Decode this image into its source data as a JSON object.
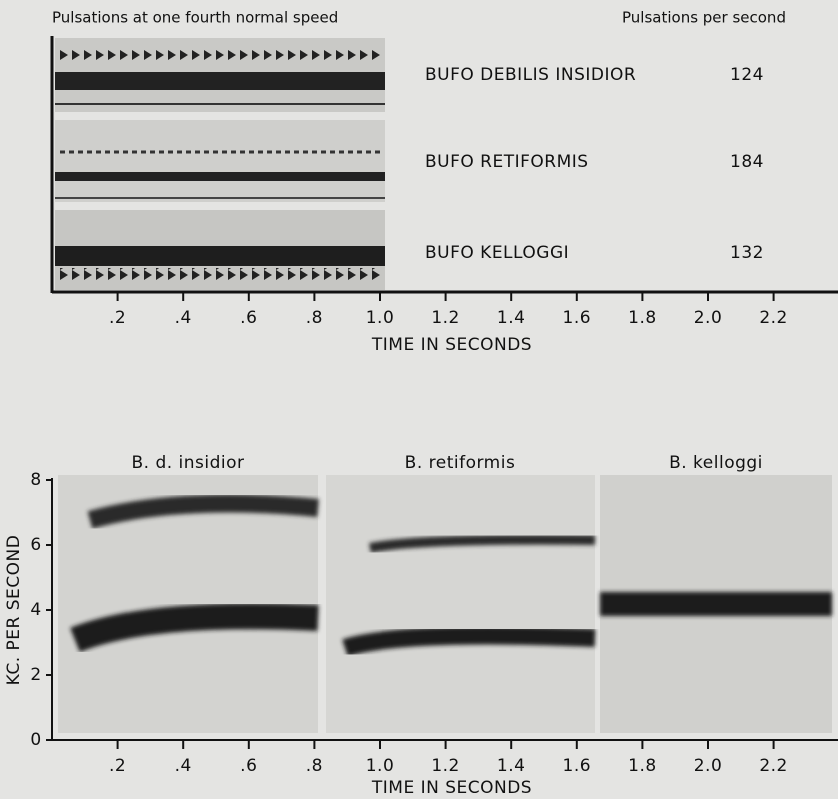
{
  "top": {
    "title": "Pulsations at one fourth normal speed",
    "rate_header": "Pulsations per second",
    "rows": [
      {
        "name": "BUFO DEBILIS INSIDIOR",
        "rate": 124
      },
      {
        "name": "BUFO RETIFORMIS",
        "rate": 184
      },
      {
        "name": "BUFO KELLOGGI",
        "rate": 132
      }
    ],
    "xlabel": "TIME IN SECONDS",
    "xticks": [
      {
        "value": 0.2,
        "label": ".2"
      },
      {
        "value": 0.4,
        "label": ".4"
      },
      {
        "value": 0.6,
        "label": ".6"
      },
      {
        "value": 0.8,
        "label": ".8"
      },
      {
        "value": 1,
        "label": "1.0"
      },
      1.2,
      1.4,
      1.6,
      1.8,
      {
        "value": 2,
        "label": "2.0"
      },
      2.2
    ]
  },
  "bottom": {
    "panels": [
      "B. d. insidior",
      "B. retiformis",
      "B. kelloggi"
    ],
    "ylabel": "KC. PER SECOND",
    "yticks": [
      0,
      2,
      4,
      6,
      8
    ],
    "xlabel": "TIME IN SECONDS",
    "xticks": [
      {
        "value": 0.2,
        "label": ".2"
      },
      {
        "value": 0.4,
        "label": ".4"
      },
      {
        "value": 0.6,
        "label": ".6"
      },
      {
        "value": 0.8,
        "label": ".8"
      },
      {
        "value": 1,
        "label": "1.0"
      },
      1.2,
      1.4,
      1.6,
      1.8,
      {
        "value": 2,
        "label": "2.0"
      },
      2.2
    ]
  }
}
